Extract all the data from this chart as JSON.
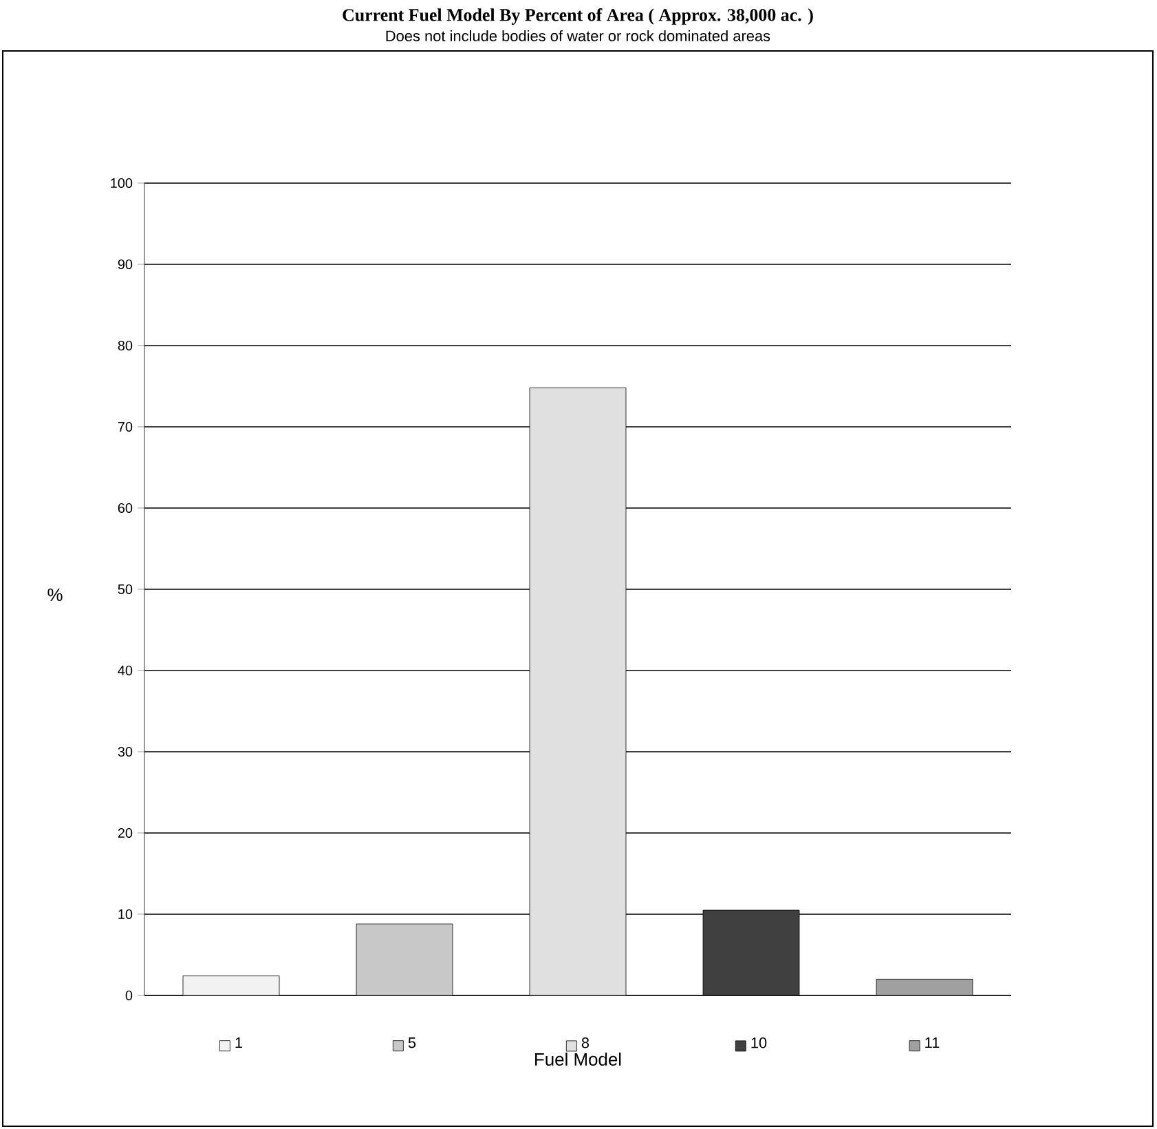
{
  "chart_data": {
    "type": "bar",
    "title": "Current Fuel Model By Percent of Area ( Approx. 38,000 ac. )",
    "subtitle": "Does not include bodies of water or rock dominated areas",
    "xlabel": "Fuel Model",
    "ylabel": "%",
    "categories": [
      "1",
      "5",
      "8",
      "10",
      "11"
    ],
    "values": [
      2.4,
      8.8,
      74.8,
      10.5,
      2.0
    ],
    "colors": [
      "#f2f2f2",
      "#c8c8c8",
      "#e0e0e0",
      "#404040",
      "#a0a0a0"
    ],
    "ylim": [
      0,
      100
    ],
    "yticks": [
      0,
      10,
      20,
      30,
      40,
      50,
      60,
      70,
      80,
      90,
      100
    ],
    "grid": "y"
  }
}
